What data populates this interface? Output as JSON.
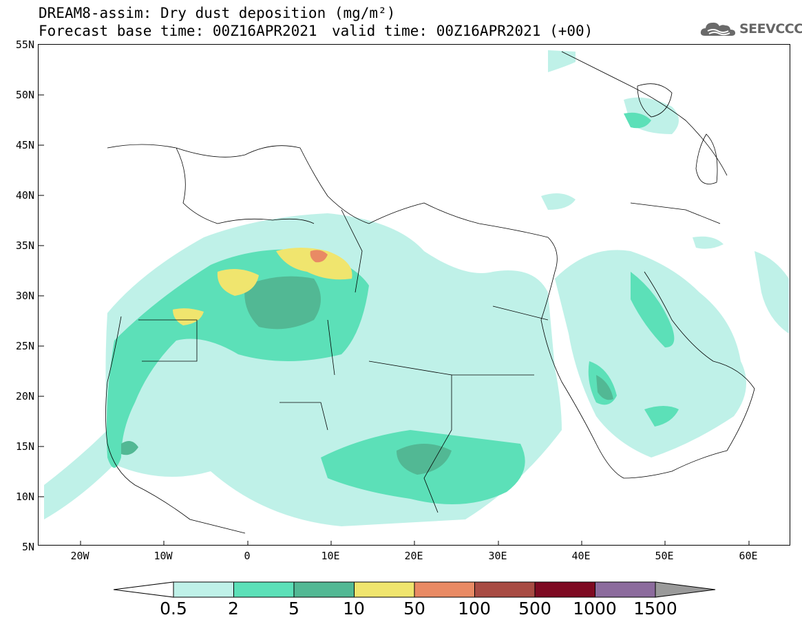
{
  "header": {
    "title_line1": "DREAM8-assim: Dry dust deposition (mg/m²)",
    "base_time": "Forecast base time: 00Z16APR2021",
    "valid_time": "valid time: 00Z16APR2021 (+00)",
    "logo_text": "SEEVCCC"
  },
  "map": {
    "lat_labels": [
      "55N",
      "50N",
      "45N",
      "40N",
      "35N",
      "30N",
      "25N",
      "20N",
      "15N",
      "10N",
      "5N"
    ],
    "lon_labels": [
      "20W",
      "10W",
      "0",
      "10E",
      "20E",
      "30E",
      "40E",
      "50E",
      "60E"
    ],
    "lat_range": [
      5,
      55
    ],
    "lon_range": [
      -25,
      65
    ]
  },
  "colorbar": {
    "labels": [
      "0.5",
      "2",
      "5",
      "10",
      "50",
      "100",
      "500",
      "1000",
      "1500"
    ],
    "colors": [
      "#bff1e8",
      "#5ce0b8",
      "#52b894",
      "#f0e56e",
      "#e98a64",
      "#a84b43",
      "#7e0a22",
      "#8c6b9d"
    ],
    "over_color": "#9a9a9a",
    "under_color": "#ffffff"
  }
}
